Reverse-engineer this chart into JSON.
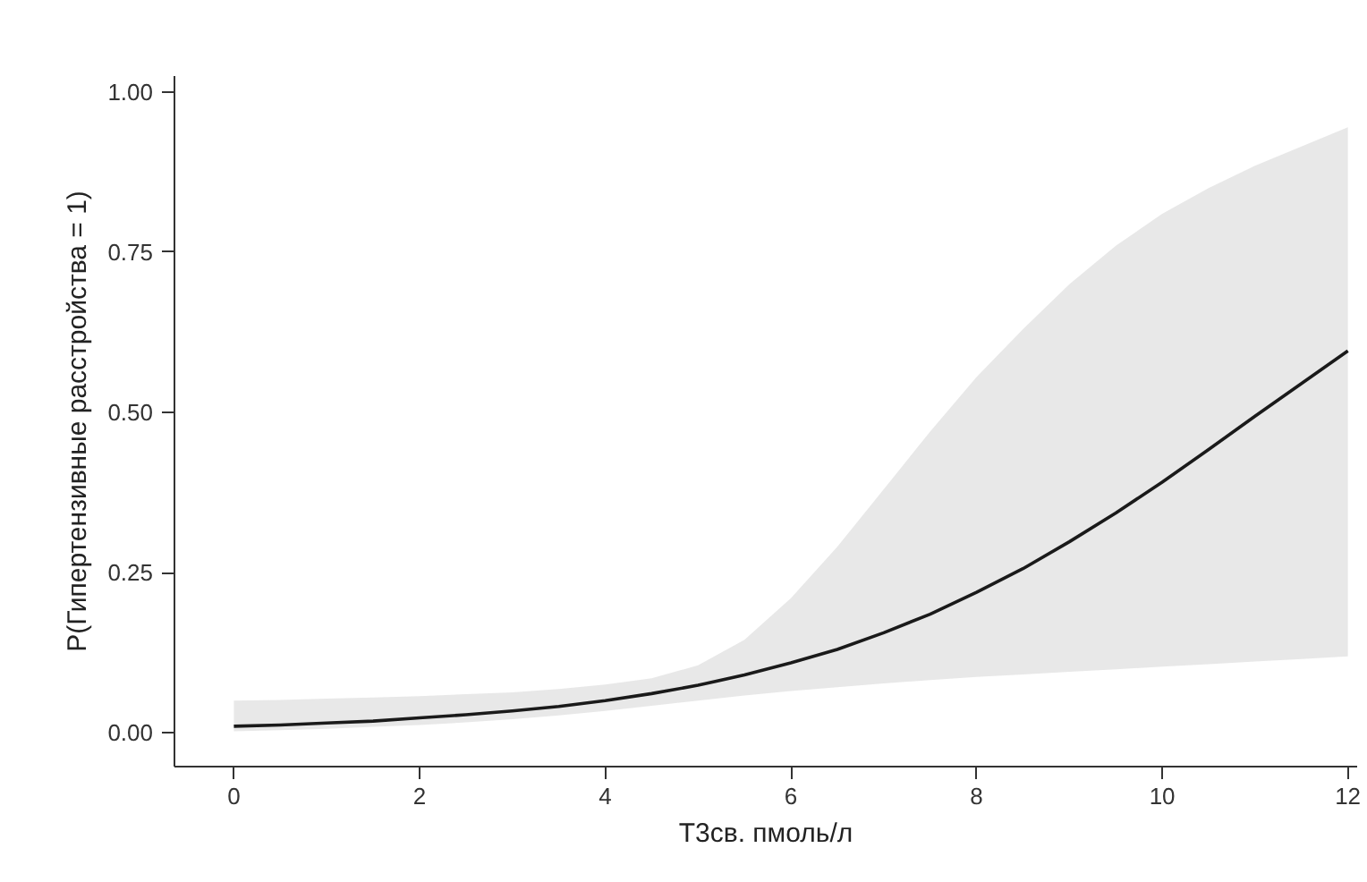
{
  "chart_data": {
    "type": "line",
    "xlabel": "T3св. пмоль/л",
    "ylabel": "P(Гипертензивные расстройства = 1)",
    "xlim": [
      -0.64,
      12.1
    ],
    "ylim": [
      -0.053,
      1.025
    ],
    "xticks": [
      0,
      2,
      4,
      6,
      8,
      10,
      12
    ],
    "yticks": [
      {
        "value": 0,
        "label": "0.00"
      },
      {
        "value": 0.25,
        "label": "0.25"
      },
      {
        "value": 0.5,
        "label": "0.50"
      },
      {
        "value": 0.75,
        "label": "0.75"
      },
      {
        "value": 1,
        "label": "1.00"
      }
    ],
    "grid": false,
    "series": [
      {
        "color": "#1a1a1a",
        "x": [
          0,
          0.5,
          1,
          1.5,
          2,
          2.5,
          3,
          3.5,
          4,
          4.5,
          5,
          5.5,
          6,
          6.5,
          7,
          7.5,
          8,
          8.5,
          9,
          9.5,
          10,
          10.5,
          11,
          11.5,
          12
        ],
        "values": [
          0.01,
          0.012,
          0.015,
          0.018,
          0.023,
          0.028,
          0.034,
          0.041,
          0.05,
          0.061,
          0.074,
          0.09,
          0.109,
          0.13,
          0.156,
          0.185,
          0.219,
          0.256,
          0.298,
          0.343,
          0.391,
          0.442,
          0.494,
          0.545,
          0.596
        ],
        "lower": [
          0.002,
          0.004,
          0.006,
          0.009,
          0.012,
          0.016,
          0.021,
          0.027,
          0.034,
          0.042,
          0.05,
          0.058,
          0.065,
          0.071,
          0.077,
          0.082,
          0.087,
          0.091,
          0.095,
          0.099,
          0.103,
          0.107,
          0.111,
          0.115,
          0.119
        ],
        "upper": [
          0.05,
          0.051,
          0.053,
          0.055,
          0.057,
          0.06,
          0.063,
          0.068,
          0.075,
          0.085,
          0.105,
          0.145,
          0.21,
          0.29,
          0.38,
          0.47,
          0.555,
          0.63,
          0.7,
          0.76,
          0.81,
          0.85,
          0.885,
          0.915,
          0.945
        ]
      }
    ]
  }
}
